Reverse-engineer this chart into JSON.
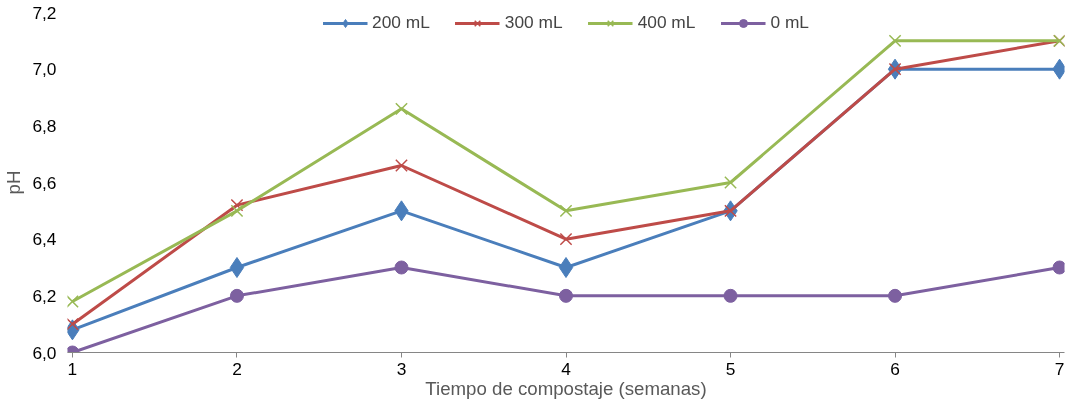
{
  "chart_data": {
    "type": "line",
    "xlabel": "Tiempo de compostaje (semanas)",
    "ylabel": "pH",
    "x": [
      1,
      2,
      3,
      4,
      5,
      6,
      7
    ],
    "xlim": [
      0.97,
      7.03
    ],
    "xticks": [
      1,
      2,
      3,
      4,
      5,
      6,
      7
    ],
    "ylim": [
      6.0,
      7.2
    ],
    "yticks": [
      {
        "value": 6.0,
        "label": "6,0"
      },
      {
        "value": 6.2,
        "label": "6,2"
      },
      {
        "value": 6.4,
        "label": "6,4"
      },
      {
        "value": 6.6,
        "label": "6,6"
      },
      {
        "value": 6.8,
        "label": "6,8"
      },
      {
        "value": 7.0,
        "label": "7,0"
      },
      {
        "value": 7.2,
        "label": "7,2"
      }
    ],
    "grid": false,
    "legend": "top",
    "line_style": "solid",
    "series": [
      {
        "name": "200 mL",
        "color": "#4a7ebb",
        "marker": "diamond",
        "values": [
          6.08,
          6.3,
          6.5,
          6.3,
          6.5,
          7.0,
          7.0
        ]
      },
      {
        "name": "300 mL",
        "color": "#be4b48",
        "marker": "cross",
        "values": [
          6.1,
          6.52,
          6.66,
          6.4,
          6.5,
          7.0,
          7.1
        ]
      },
      {
        "name": "400 mL",
        "color": "#98b954",
        "marker": "cross",
        "values": [
          6.18,
          6.5,
          6.86,
          6.5,
          6.6,
          7.1,
          7.1
        ]
      },
      {
        "name": "0 mL",
        "color": "#7d60a0",
        "marker": "circle",
        "values": [
          6.0,
          6.2,
          6.3,
          6.2,
          6.2,
          6.2,
          6.3
        ]
      }
    ]
  }
}
